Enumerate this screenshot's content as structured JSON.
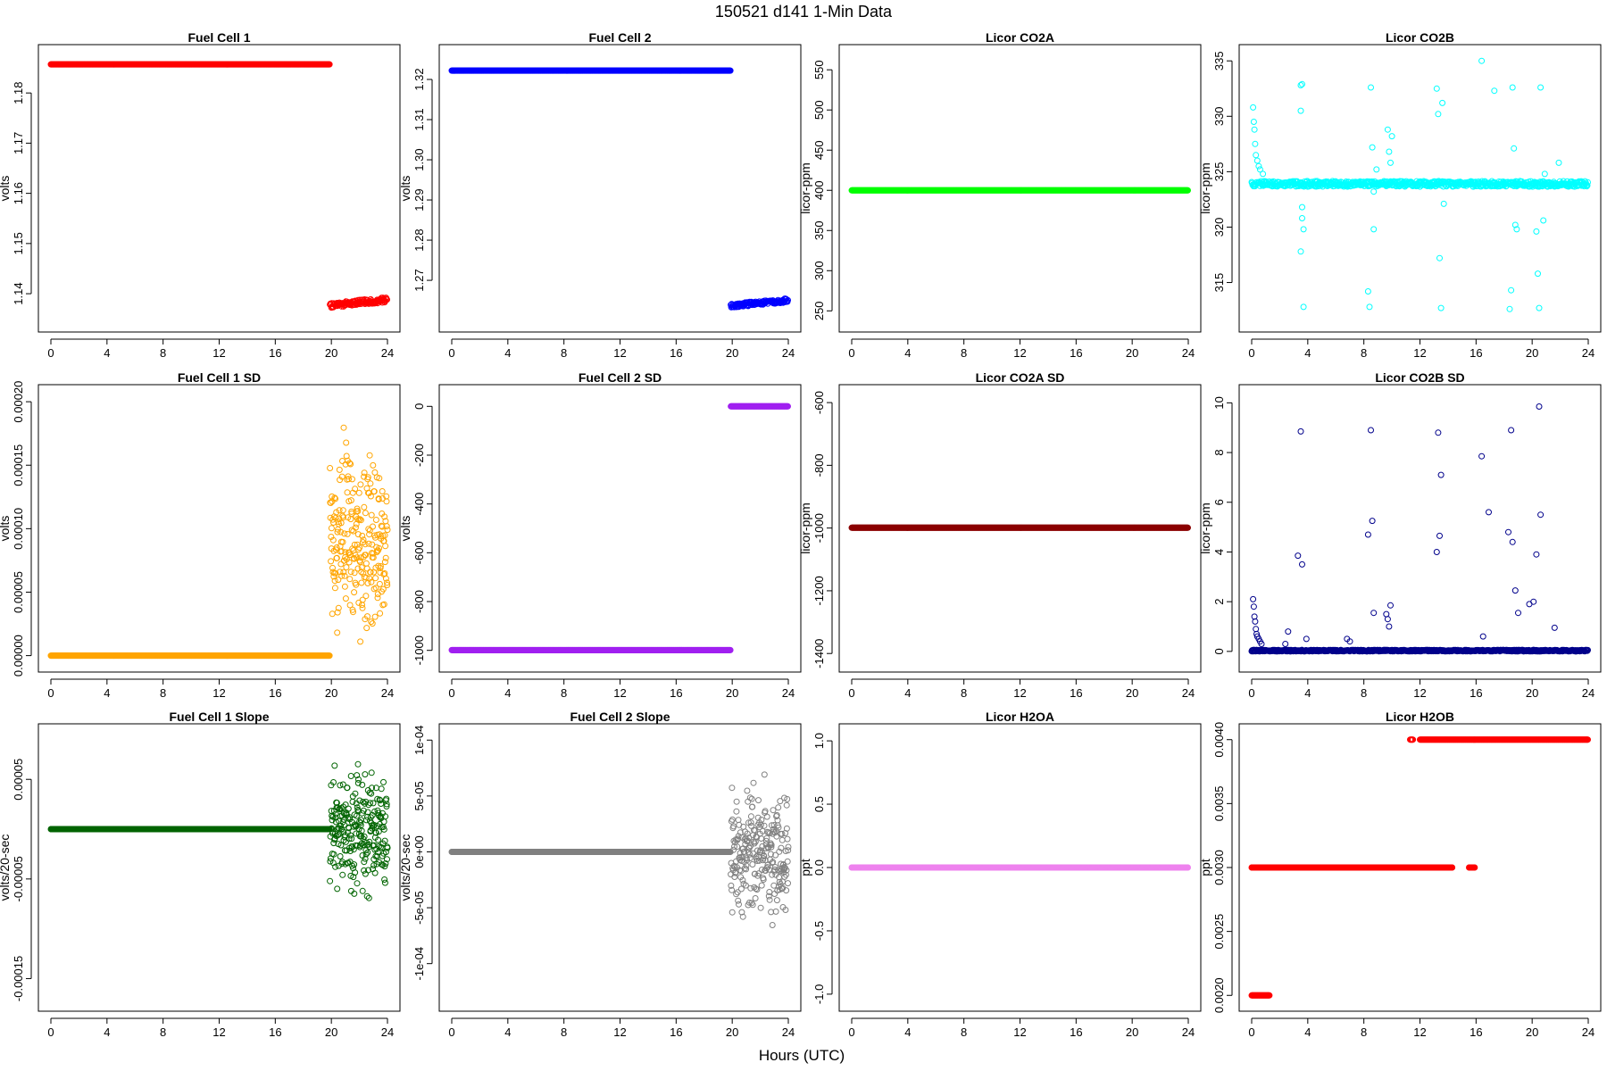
{
  "figure": {
    "title": "150521    d141    1-Min Data",
    "xlabel": "Hours (UTC)"
  },
  "chart_data": [
    {
      "type": "scatter",
      "title": "Fuel Cell 1",
      "ylabel": "volts",
      "color": "#ff0000",
      "xlim": [
        0,
        24
      ],
      "xticks": [
        0,
        4,
        8,
        12,
        16,
        20,
        24
      ],
      "ylim": [
        1.1345,
        1.1875
      ],
      "yticks": [
        1.14,
        1.15,
        1.16,
        1.17,
        1.18
      ],
      "ytick_labels": [
        "1.14",
        "1.15",
        "1.16",
        "1.17",
        "1.18"
      ],
      "pattern": {
        "kind": "step",
        "before_value": 1.1857,
        "after_value": 1.1377,
        "after_jitter": 0.0005,
        "after_trend": 0.0011,
        "split_hour": 19.9
      }
    },
    {
      "type": "scatter",
      "title": "Fuel Cell 2",
      "ylabel": "volts",
      "color": "#0000ff",
      "xlim": [
        0,
        24
      ],
      "xticks": [
        0,
        4,
        8,
        12,
        16,
        20,
        24
      ],
      "ylim": [
        1.2598,
        1.326
      ],
      "yticks": [
        1.27,
        1.28,
        1.29,
        1.3,
        1.31,
        1.32
      ],
      "ytick_labels": [
        "1.27",
        "1.28",
        "1.29",
        "1.30",
        "1.31",
        "1.32"
      ],
      "pattern": {
        "kind": "step",
        "before_value": 1.3222,
        "after_value": 1.2637,
        "after_jitter": 0.0005,
        "after_trend": 0.0013,
        "split_hour": 19.9
      }
    },
    {
      "type": "scatter",
      "title": "Licor CO2A",
      "ylabel": "licor-ppm",
      "color": "#00ff00",
      "xlim": [
        0,
        24
      ],
      "xticks": [
        0,
        4,
        8,
        12,
        16,
        20,
        24
      ],
      "ylim": [
        237,
        568
      ],
      "yticks": [
        250,
        300,
        350,
        400,
        450,
        500,
        550
      ],
      "ytick_labels": [
        "250",
        "300",
        "350",
        "400",
        "450",
        "500",
        "550"
      ],
      "pattern": {
        "kind": "constant",
        "value": 400
      }
    },
    {
      "type": "scatter",
      "title": "Licor CO2B",
      "ylabel": "licor-ppm",
      "color": "#00ffff",
      "xlim": [
        0,
        24
      ],
      "xticks": [
        0,
        4,
        8,
        12,
        16,
        20,
        24
      ],
      "ylim": [
        311.5,
        335.5
      ],
      "yticks": [
        315,
        320,
        325,
        330,
        335
      ],
      "ytick_labels": [
        "315",
        "320",
        "325",
        "330",
        "335"
      ],
      "pattern": {
        "kind": "baseline-noise",
        "value": 323.9,
        "jitter": 0.25
      },
      "outliers": [
        [
          0.1,
          330.8
        ],
        [
          0.15,
          329.5
        ],
        [
          0.2,
          328.8
        ],
        [
          0.25,
          327.5
        ],
        [
          0.3,
          326.5
        ],
        [
          0.4,
          326
        ],
        [
          0.5,
          325.5
        ],
        [
          0.6,
          325.2
        ],
        [
          0.8,
          324.8
        ],
        [
          3.5,
          332.8
        ],
        [
          3.5,
          330.5
        ],
        [
          3.5,
          317.8
        ],
        [
          3.6,
          332.9
        ],
        [
          3.6,
          321.8
        ],
        [
          3.6,
          320.8
        ],
        [
          3.7,
          319.8
        ],
        [
          3.7,
          312.8
        ],
        [
          8.3,
          314.2
        ],
        [
          8.4,
          312.8
        ],
        [
          8.5,
          332.6
        ],
        [
          8.6,
          327.2
        ],
        [
          8.7,
          319.8
        ],
        [
          8.7,
          323.2
        ],
        [
          8.9,
          325.2
        ],
        [
          9.7,
          328.8
        ],
        [
          9.8,
          326.8
        ],
        [
          9.9,
          325.8
        ],
        [
          10.0,
          328.2
        ],
        [
          13.2,
          332.5
        ],
        [
          13.3,
          330.2
        ],
        [
          13.4,
          317.2
        ],
        [
          13.5,
          312.7
        ],
        [
          13.6,
          331.2
        ],
        [
          13.7,
          322.1
        ],
        [
          16.4,
          335.0
        ],
        [
          17.3,
          332.3
        ],
        [
          18.4,
          312.6
        ],
        [
          18.5,
          314.3
        ],
        [
          18.6,
          332.6
        ],
        [
          18.7,
          327.1
        ],
        [
          18.8,
          320.2
        ],
        [
          18.9,
          319.8
        ],
        [
          20.3,
          319.6
        ],
        [
          20.4,
          315.8
        ],
        [
          20.5,
          312.7
        ],
        [
          20.6,
          332.6
        ],
        [
          20.8,
          320.6
        ],
        [
          20.9,
          324.8
        ],
        [
          21.9,
          325.8
        ]
      ]
    },
    {
      "type": "scatter",
      "title": "Fuel Cell 1 SD",
      "ylabel": "volts",
      "color": "#ffa500",
      "xlim": [
        0,
        24
      ],
      "xticks": [
        0,
        4,
        8,
        12,
        16,
        20,
        24
      ],
      "ylim": [
        -4.5e-06,
        0.000205
      ],
      "yticks": [
        0,
        5e-05,
        0.0001,
        0.00015,
        0.0002
      ],
      "ytick_labels": [
        "0.00000",
        "0.00005",
        "0.00010",
        "0.00015",
        "0.00020"
      ],
      "pattern": {
        "kind": "step-scatter",
        "before_value": 0,
        "after_mean": 9.2e-05,
        "after_spread": 5.5e-05,
        "split_hour": 19.9
      }
    },
    {
      "type": "scatter",
      "title": "Fuel Cell 2 SD",
      "ylabel": "volts",
      "color": "#a020f0",
      "xlim": [
        0,
        24
      ],
      "xticks": [
        0,
        4,
        8,
        12,
        16,
        20,
        24
      ],
      "ylim": [
        -1045,
        45
      ],
      "yticks": [
        -1000,
        -800,
        -600,
        -400,
        -200,
        0
      ],
      "ytick_labels": [
        "-1000",
        "-800",
        "-600",
        "-400",
        "-200",
        "0"
      ],
      "pattern": {
        "kind": "step",
        "before_value": -999,
        "after_value": 0,
        "after_jitter": 0,
        "after_trend": 0,
        "split_hour": 19.9
      }
    },
    {
      "type": "scatter",
      "title": "Licor CO2A SD",
      "ylabel": "licor-ppm",
      "color": "#8b0000",
      "xlim": [
        0,
        24
      ],
      "xticks": [
        0,
        4,
        8,
        12,
        16,
        20,
        24
      ],
      "ylim": [
        -1425,
        -577
      ],
      "yticks": [
        -1400,
        -1200,
        -1000,
        -800,
        -600
      ],
      "ytick_labels": [
        "-1400",
        "-1200",
        "-1000",
        "-800",
        "-600"
      ],
      "pattern": {
        "kind": "constant",
        "value": -999
      }
    },
    {
      "type": "scatter",
      "title": "Licor CO2B SD",
      "ylabel": "licor-ppm",
      "color": "#00008b",
      "xlim": [
        0,
        24
      ],
      "xticks": [
        0,
        4,
        8,
        12,
        16,
        20,
        24
      ],
      "ylim": [
        -0.4,
        10.3
      ],
      "yticks": [
        0,
        2,
        4,
        6,
        8,
        10
      ],
      "ytick_labels": [
        "0",
        "2",
        "4",
        "6",
        "8",
        "10"
      ],
      "pattern": {
        "kind": "baseline-noise",
        "value": 0.03,
        "jitter": 0.03
      },
      "outliers": [
        [
          0.1,
          2.1
        ],
        [
          0.15,
          1.8
        ],
        [
          0.2,
          1.4
        ],
        [
          0.25,
          1.2
        ],
        [
          0.3,
          0.9
        ],
        [
          0.35,
          0.7
        ],
        [
          0.4,
          0.6
        ],
        [
          0.5,
          0.5
        ],
        [
          0.6,
          0.4
        ],
        [
          0.7,
          0.3
        ],
        [
          2.4,
          0.3
        ],
        [
          2.6,
          0.8
        ],
        [
          3.3,
          3.85
        ],
        [
          3.5,
          8.85
        ],
        [
          3.6,
          3.5
        ],
        [
          3.9,
          0.5
        ],
        [
          6.8,
          0.5
        ],
        [
          7.0,
          0.4
        ],
        [
          8.3,
          4.7
        ],
        [
          8.5,
          8.9
        ],
        [
          8.6,
          5.25
        ],
        [
          8.7,
          1.55
        ],
        [
          9.6,
          1.5
        ],
        [
          9.7,
          1.3
        ],
        [
          9.8,
          1.0
        ],
        [
          9.9,
          1.85
        ],
        [
          13.2,
          4.0
        ],
        [
          13.3,
          8.8
        ],
        [
          13.4,
          4.65
        ],
        [
          13.5,
          7.1
        ],
        [
          16.4,
          7.85
        ],
        [
          16.5,
          0.6
        ],
        [
          16.9,
          5.6
        ],
        [
          18.3,
          4.8
        ],
        [
          18.5,
          8.9
        ],
        [
          18.6,
          4.4
        ],
        [
          18.8,
          2.45
        ],
        [
          19.0,
          1.55
        ],
        [
          19.8,
          1.9
        ],
        [
          20.1,
          2.0
        ],
        [
          20.3,
          3.9
        ],
        [
          20.5,
          9.85
        ],
        [
          20.6,
          5.5
        ],
        [
          21.6,
          0.95
        ]
      ]
    },
    {
      "type": "scatter",
      "title": "Fuel Cell 1 Slope",
      "ylabel": "volts/20-sec",
      "color": "#006400",
      "xlim": [
        0,
        24
      ],
      "xticks": [
        0,
        4,
        8,
        12,
        16,
        20,
        24
      ],
      "ylim": [
        -0.000172,
        9.5e-05
      ],
      "yticks": [
        -0.00015,
        -5e-05,
        5e-05
      ],
      "ytick_labels": [
        "-0.00015",
        "-0.00005",
        "0.00005"
      ],
      "pattern": {
        "kind": "step-scatter",
        "before_value": 0.0,
        "after_mean": -2e-06,
        "after_spread": 4.5e-05,
        "split_hour": 19.9
      }
    },
    {
      "type": "scatter",
      "title": "Fuel Cell 2 Slope",
      "ylabel": "volts/20-sec",
      "color": "#808080",
      "xlim": [
        0,
        24
      ],
      "xticks": [
        0,
        4,
        8,
        12,
        16,
        20,
        24
      ],
      "ylim": [
        -0.000133,
        0.000105
      ],
      "yticks": [
        -0.0001,
        -5e-05,
        0,
        5e-05,
        0.0001
      ],
      "ytick_labels": [
        "-1e-04",
        "-5e-05",
        "0e+00",
        "5e-05",
        "1e-04"
      ],
      "pattern": {
        "kind": "step-scatter",
        "before_value": 0.0,
        "after_mean": 0.0,
        "after_spread": 4.5e-05,
        "split_hour": 19.9
      }
    },
    {
      "type": "scatter",
      "title": "Licor H2OA",
      "ylabel": "ppt",
      "color": "#ee82ee",
      "xlim": [
        0,
        24
      ],
      "xticks": [
        0,
        4,
        8,
        12,
        16,
        20,
        24
      ],
      "ylim": [
        -1.05,
        1.05
      ],
      "yticks": [
        -1.0,
        -0.5,
        0.0,
        0.5,
        1.0
      ],
      "ytick_labels": [
        "-1.0",
        "-0.5",
        "0.0",
        "0.5",
        "1.0"
      ],
      "pattern": {
        "kind": "constant",
        "value": 0
      }
    },
    {
      "type": "scatter",
      "title": "Licor H2OB",
      "ylabel": "ppt",
      "color": "#ff0000",
      "xlim": [
        0,
        24
      ],
      "xticks": [
        0,
        4,
        8,
        12,
        16,
        20,
        24
      ],
      "ylim": [
        0.00196,
        0.00404
      ],
      "yticks": [
        0.002,
        0.0025,
        0.003,
        0.0035,
        0.004
      ],
      "ytick_labels": [
        "0.0020",
        "0.0025",
        "0.0030",
        "0.0035",
        "0.0040"
      ],
      "pattern": {
        "kind": "levels",
        "segments": [
          [
            0.0,
            1.3,
            0.002
          ],
          [
            0.0,
            14.3,
            0.003
          ],
          [
            15.5,
            15.9,
            0.003
          ],
          [
            11.3,
            11.5,
            0.004
          ],
          [
            12.0,
            24.0,
            0.004
          ]
        ]
      }
    }
  ]
}
